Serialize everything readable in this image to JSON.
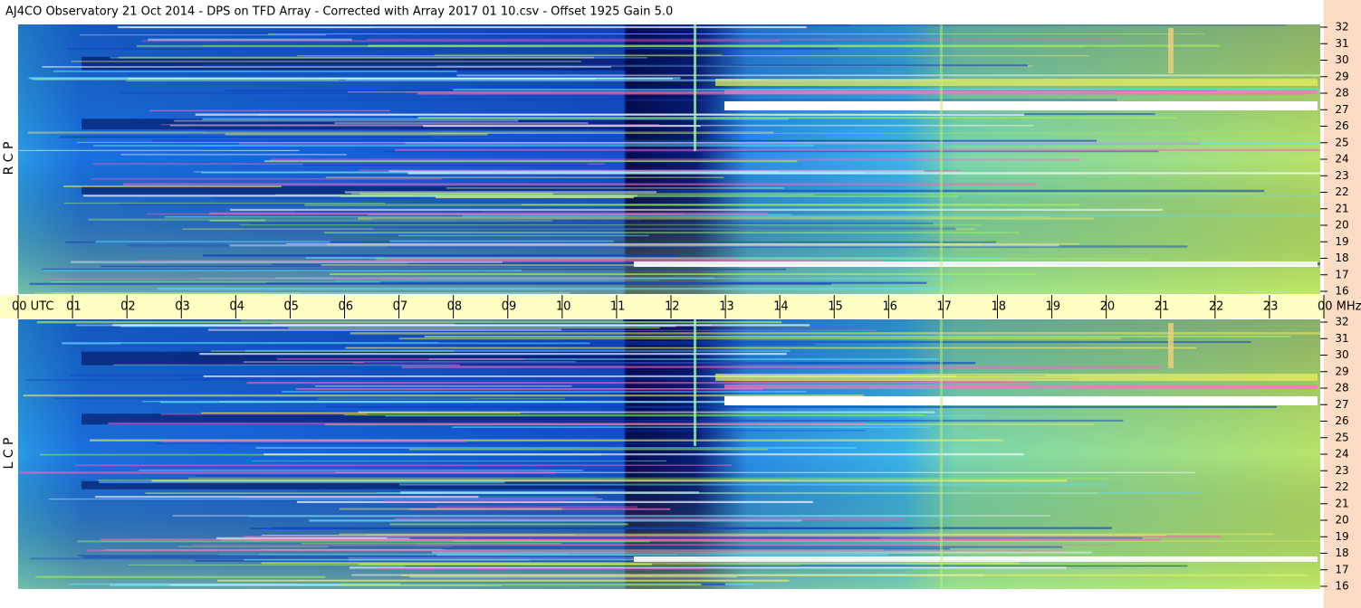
{
  "header": {
    "title": "AJ4CO Observatory  21 Oct 2014  -  DPS on TFD Array  -  Corrected with Array 2017 01 10.csv  -  Offset 1925  Gain 5.0"
  },
  "time_axis": {
    "labels": [
      "00  UTC",
      "01",
      "02",
      "03",
      "04",
      "05",
      "06",
      "07",
      "08",
      "09",
      "10",
      "11",
      "12",
      "13",
      "14",
      "15",
      "16",
      "17",
      "18",
      "19",
      "20",
      "21",
      "22",
      "23",
      "00 MHz"
    ]
  },
  "panels": [
    {
      "label": "R  C  P",
      "frequencies": [
        32,
        31,
        30,
        29,
        28,
        27,
        26,
        25,
        24,
        23,
        22,
        21,
        20,
        19,
        18,
        17,
        16
      ]
    },
    {
      "label": "L  C  P",
      "frequencies": [
        32,
        31,
        30,
        29,
        28,
        27,
        26,
        25,
        24,
        23,
        22,
        21,
        20,
        19,
        18,
        17,
        16
      ]
    }
  ]
}
